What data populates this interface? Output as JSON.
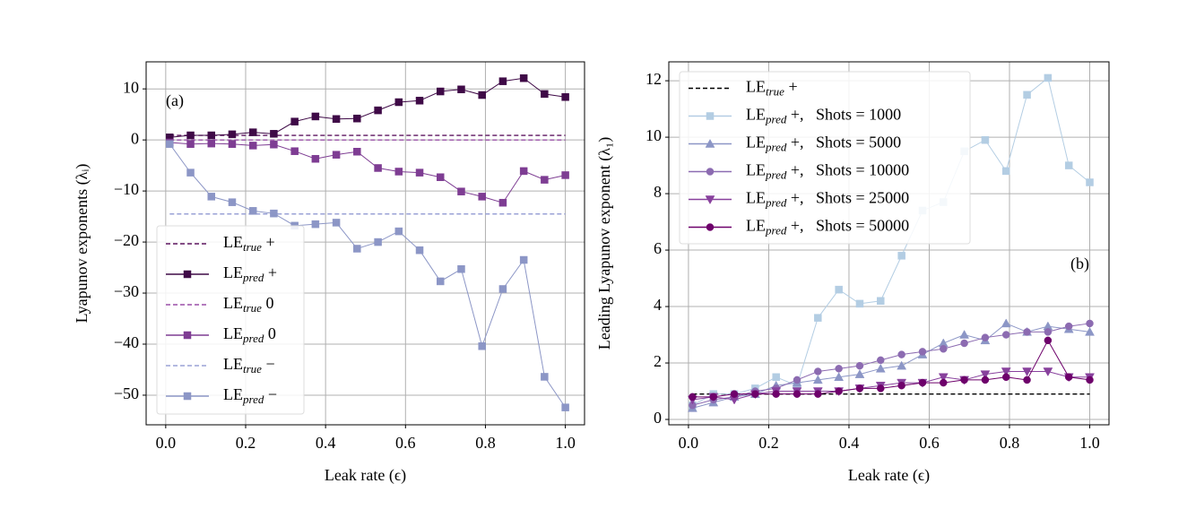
{
  "chart_data": [
    {
      "type": "line",
      "annotation": "(a)",
      "x_label": "Leak rate (ϵ)",
      "y_label": "Lyapunov exponents (λᵢ)",
      "x": [
        0.01,
        0.0621,
        0.1142,
        0.1663,
        0.2184,
        0.2705,
        0.3226,
        0.3747,
        0.4268,
        0.4789,
        0.5311,
        0.5832,
        0.6353,
        0.6874,
        0.7395,
        0.7916,
        0.8437,
        0.8958,
        0.9479,
        1.0
      ],
      "xlim": [
        -0.049,
        1.048
      ],
      "ylim": [
        -55.8,
        15.3
      ],
      "xticks": [
        {
          "value": 0,
          "label": "0.0"
        },
        0.2,
        0.4,
        0.6,
        0.8,
        {
          "value": 1,
          "label": "1.0"
        }
      ],
      "yticks": [
        10,
        0,
        {
          "value": -10,
          "label": "−10"
        },
        {
          "value": -20,
          "label": "−20"
        },
        {
          "value": -30,
          "label": "−30"
        },
        {
          "value": -40,
          "label": "−40"
        },
        {
          "value": -50,
          "label": "−50"
        }
      ],
      "grid": true,
      "legend": "lower left",
      "series": [
        {
          "name": "LE_{true} +",
          "color": "#5c145f",
          "linestyle": "dashed",
          "values": [
            0.9,
            0.9,
            0.9,
            0.9,
            0.9,
            0.9,
            0.9,
            0.9,
            0.9,
            0.9,
            0.9,
            0.9,
            0.9,
            0.9,
            0.9,
            0.9,
            0.9,
            0.9,
            0.9,
            0.9
          ]
        },
        {
          "name": "LE_{pred} +",
          "color": "#3f0a47",
          "marker": "square",
          "values": [
            0.5,
            0.9,
            0.9,
            1.1,
            1.5,
            1.2,
            3.6,
            4.6,
            4.1,
            4.2,
            5.8,
            7.4,
            7.7,
            9.5,
            9.9,
            8.8,
            11.5,
            12.1,
            9.0,
            8.4
          ]
        },
        {
          "name": "LE_{true} 0",
          "color": "#9a4fa8",
          "linestyle": "dashed",
          "values": [
            0,
            0,
            0,
            0,
            0,
            0,
            0,
            0,
            0,
            0,
            0,
            0,
            0,
            0,
            0,
            0,
            0,
            0,
            0,
            0
          ]
        },
        {
          "name": "LE_{pred} 0",
          "color": "#7e3d93",
          "marker": "square",
          "values": [
            -0.5,
            -0.8,
            -0.7,
            -0.8,
            -1.1,
            -0.9,
            -2.2,
            -3.7,
            -2.9,
            -2.3,
            -5.5,
            -6.2,
            -6.4,
            -7.3,
            -10.1,
            -11.1,
            -12.3,
            -6.1,
            -7.8,
            -6.9
          ]
        },
        {
          "name": "LE_{true} −",
          "color": "#9aa2d6",
          "linestyle": "dashed",
          "values": [
            -14.5,
            -14.5,
            -14.5,
            -14.5,
            -14.5,
            -14.5,
            -14.5,
            -14.5,
            -14.5,
            -14.5,
            -14.5,
            -14.5,
            -14.5,
            -14.5,
            -14.5,
            -14.5,
            -14.5,
            -14.5,
            -14.5,
            -14.5
          ]
        },
        {
          "name": "LE_{pred} −",
          "color": "#8c96c6",
          "marker": "square",
          "values": [
            -0.8,
            -6.4,
            -11.1,
            -12.2,
            -13.9,
            -14.4,
            -16.8,
            -16.5,
            -16.2,
            -21.3,
            -20.0,
            -17.9,
            -21.6,
            -27.7,
            -25.3,
            -40.4,
            -29.2,
            -23.5,
            -46.4,
            -52.4
          ]
        }
      ]
    },
    {
      "type": "line",
      "annotation": "(b)",
      "x_label": "Leak rate (ϵ)",
      "y_label": "Leading Lyapunov exponent (λ₁)",
      "x": [
        0.01,
        0.0621,
        0.1142,
        0.1663,
        0.2184,
        0.2705,
        0.3226,
        0.3747,
        0.4268,
        0.4789,
        0.5311,
        0.5832,
        0.6353,
        0.6874,
        0.7395,
        0.7916,
        0.8437,
        0.8958,
        0.9479,
        1.0
      ],
      "xlim": [
        -0.049,
        1.048
      ],
      "ylim": [
        -0.19,
        12.67
      ],
      "xticks": [
        {
          "value": 0,
          "label": "0.0"
        },
        0.2,
        0.4,
        0.6,
        0.8,
        {
          "value": 1,
          "label": "1.0"
        }
      ],
      "yticks": [
        0,
        2,
        4,
        6,
        8,
        10,
        12
      ],
      "grid": true,
      "legend": "upper left",
      "series": [
        {
          "name": "LE_{true} +",
          "color": "#000000",
          "linestyle": "dashed",
          "values": [
            0.9,
            0.9,
            0.9,
            0.9,
            0.9,
            0.9,
            0.9,
            0.9,
            0.9,
            0.9,
            0.9,
            0.9,
            0.9,
            0.9,
            0.9,
            0.9,
            0.9,
            0.9,
            0.9,
            0.9
          ]
        },
        {
          "name": "LE_{pred} +,   Shots = 1000",
          "color": "#b3cde3",
          "marker": "square",
          "values": [
            0.5,
            0.9,
            0.9,
            1.1,
            1.5,
            1.2,
            3.6,
            4.6,
            4.1,
            4.2,
            5.8,
            7.4,
            7.7,
            9.5,
            9.9,
            8.8,
            11.5,
            12.1,
            9.0,
            8.4
          ]
        },
        {
          "name": "LE_{pred} +,   Shots = 5000",
          "color": "#8c96c6",
          "marker": "triangle-up",
          "values": [
            0.4,
            0.6,
            0.8,
            0.9,
            1.2,
            1.3,
            1.4,
            1.5,
            1.6,
            1.8,
            1.9,
            2.3,
            2.7,
            3.0,
            2.8,
            3.4,
            3.1,
            3.3,
            3.2,
            3.1
          ]
        },
        {
          "name": "LE_{pred} +,   Shots = 10000",
          "color": "#8c6bb1",
          "marker": "circle",
          "values": [
            0.5,
            0.7,
            0.8,
            1.0,
            1.1,
            1.4,
            1.7,
            1.8,
            1.9,
            2.1,
            2.3,
            2.4,
            2.5,
            2.7,
            2.9,
            3.0,
            3.1,
            3.1,
            3.3,
            3.4
          ]
        },
        {
          "name": "LE_{pred} +,   Shots = 25000",
          "color": "#88419d",
          "marker": "triangle-down",
          "values": [
            0.7,
            0.8,
            0.7,
            0.9,
            1.0,
            1.0,
            1.0,
            1.0,
            1.1,
            1.2,
            1.3,
            1.3,
            1.5,
            1.4,
            1.6,
            1.7,
            1.7,
            1.7,
            1.5,
            1.5
          ]
        },
        {
          "name": "LE_{pred} +,   Shots = 50000",
          "color": "#6e016b",
          "marker": "circle",
          "values": [
            0.8,
            0.8,
            0.9,
            0.9,
            0.9,
            0.9,
            0.9,
            1.0,
            1.1,
            1.1,
            1.2,
            1.3,
            1.3,
            1.4,
            1.4,
            1.5,
            1.4,
            2.8,
            1.5,
            1.4
          ]
        }
      ]
    }
  ]
}
